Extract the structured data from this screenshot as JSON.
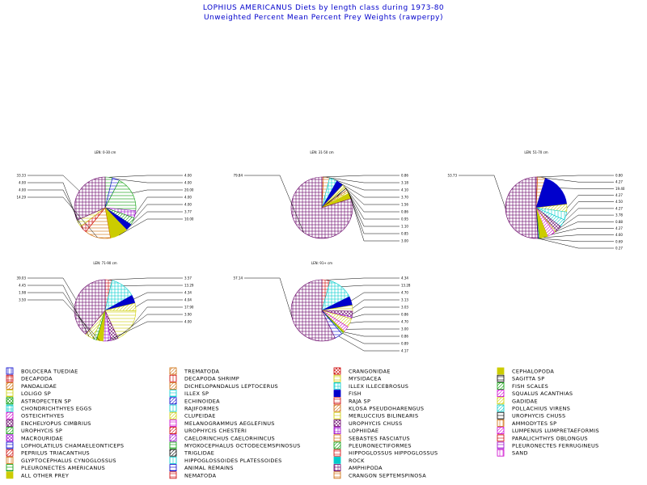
{
  "header": {
    "title": "LOPHIUS AMERICANUS Diets by length class during 1973-80",
    "subtitle": "Unweighted Percent Mean Percent Prey Weights (rawperpy)"
  },
  "chart_data": [
    {
      "type": "pie",
      "title": "LEN: 0-30 cm",
      "slices": [
        {
          "prey": "PLEURONECTES AMERICANUS",
          "value": 4.0,
          "label": "4.00"
        },
        {
          "prey": "ANIMAL REMAINS",
          "value": 4.0,
          "label": "4.00"
        },
        {
          "prey": "MYOXOCEPHALUS OCTODECEMSPINOSUS",
          "value": 20.0,
          "label": "20.00"
        },
        {
          "prey": "LOPHIIDAE",
          "value": 4.0,
          "label": "4.00"
        },
        {
          "prey": "FISH SCALES",
          "value": 4.0,
          "label": "4.00"
        },
        {
          "prey": "FISH",
          "value": 3.77,
          "label": "3.77"
        },
        {
          "prey": "CEPHALOPODA",
          "value": 10.0,
          "label": "10.00"
        },
        {
          "prey": "CRANGON SEPTEMSPINOSA",
          "value": 14.29,
          "label": "14.29"
        },
        {
          "prey": "DECAPODA",
          "value": 4.0,
          "label": "4.00"
        },
        {
          "prey": "MYSIDACEA",
          "value": 4.0,
          "label": "4.00"
        },
        {
          "prey": "AMPHIPODA",
          "value": 33.33,
          "label": "33.33"
        }
      ]
    },
    {
      "type": "pie",
      "title": "LEN: 31-50 cm",
      "slices": [
        {
          "prey": "DECAPODA",
          "value": 0.86,
          "label": "0.86"
        },
        {
          "prey": "CRANGON SEPTEMSPINOSA",
          "value": 3.18,
          "label": "3.18"
        },
        {
          "prey": "ILLEX ILLECEBROSUS",
          "value": 4.1,
          "label": "4.10"
        },
        {
          "prey": "FISH",
          "value": 3.7,
          "label": "3.70"
        },
        {
          "prey": "GADIDAE",
          "value": 1.56,
          "label": "1.56"
        },
        {
          "prey": "CLUPEIDAE",
          "value": 0.86,
          "label": "0.86"
        },
        {
          "prey": "TRIGLIDAE",
          "value": 0.95,
          "label": "0.95"
        },
        {
          "prey": "AMMODYTES SP",
          "value": 1.1,
          "label": "1.10"
        },
        {
          "prey": "MERLUCCIUS BILINEARIS",
          "value": 0.85,
          "label": "0.85"
        },
        {
          "prey": "ALL OTHER PREY",
          "value": 3.0,
          "label": "3.00"
        },
        {
          "prey": "AMPHIPODA",
          "value": 79.84,
          "label": "79.84"
        }
      ]
    },
    {
      "type": "pie",
      "title": "LEN: 51-70 cm",
      "slices": [
        {
          "prey": "DECAPODA",
          "value": 0.8,
          "label": "0.80"
        },
        {
          "prey": "CRANGON SEPTEMSPINOSA",
          "value": 4.27,
          "label": "4.27"
        },
        {
          "prey": "FISH",
          "value": 19.4,
          "label": "19.40"
        },
        {
          "prey": "GADIDAE",
          "value": 4.27,
          "label": "4.27"
        },
        {
          "prey": "RAJIFORMES",
          "value": 4.5,
          "label": "4.50"
        },
        {
          "prey": "POLLACHIUS VIRENS",
          "value": 4.27,
          "label": "4.27"
        },
        {
          "prey": "UROPHYCIS CHUSS",
          "value": 3.78,
          "label": "3.78"
        },
        {
          "prey": "MERLUCCIUS BILINEARIS",
          "value": 0.88,
          "label": "0.88"
        },
        {
          "prey": "SQUALUS ACANTHIAS",
          "value": 4.27,
          "label": "4.27"
        },
        {
          "prey": "ALL OTHER PREY",
          "value": 4.6,
          "label": "4.60"
        },
        {
          "prey": "PLEURONECTES AMERICANUS",
          "value": 0.69,
          "label": "0.69"
        },
        {
          "prey": "ANIMAL REMAINS",
          "value": 0.27,
          "label": "0.27"
        },
        {
          "prey": "AMPHIPODA",
          "value": 53.73,
          "label": "53.73"
        }
      ]
    },
    {
      "type": "pie",
      "title": "LEN: 71-90 cm",
      "slices": [
        {
          "prey": "DECAPODA",
          "value": 3.57,
          "label": "3.57"
        },
        {
          "prey": "ILLEX ILLECEBROSUS",
          "value": 13.29,
          "label": "13.29"
        },
        {
          "prey": "FISH",
          "value": 4.34,
          "label": "4.34"
        },
        {
          "prey": "CLUPEIDAE",
          "value": 4.04,
          "label": "4.04"
        },
        {
          "prey": "MERLUCCIUS BILINEARIS",
          "value": 17.9,
          "label": "17.90"
        },
        {
          "prey": "UROPHYCIS CHUSS",
          "value": 3.9,
          "label": "3.90"
        },
        {
          "prey": "LOPHIIDAE",
          "value": 4.0,
          "label": "4.00"
        },
        {
          "prey": "ALL OTHER PREY",
          "value": 3.5,
          "label": "3.50"
        },
        {
          "prey": "PLEURONECTES AMERICANUS",
          "value": 1.98,
          "label": "1.98"
        },
        {
          "prey": "GADIDAE",
          "value": 4.45,
          "label": "4.45"
        },
        {
          "prey": "AMPHIPODA",
          "value": 39.03,
          "label": "39.03"
        }
      ]
    },
    {
      "type": "pie",
      "title": "LEN: 91+ cm",
      "slices": [
        {
          "prey": "DECAPODA",
          "value": 4.34,
          "label": "4.34"
        },
        {
          "prey": "ILLEX ILLECEBROSUS",
          "value": 13.28,
          "label": "13.28"
        },
        {
          "prey": "FISH",
          "value": 4.7,
          "label": "4.70"
        },
        {
          "prey": "MERLUCCIUS BILINEARIS",
          "value": 3.13,
          "label": "3.13"
        },
        {
          "prey": "UROPHYCIS CHUSS",
          "value": 3.03,
          "label": "3.03"
        },
        {
          "prey": "LOPHIIDAE",
          "value": 0.86,
          "label": "0.86"
        },
        {
          "prey": "GADIDAE",
          "value": 4.7,
          "label": "4.70"
        },
        {
          "prey": "SQUALUS ACANTHIAS",
          "value": 3.0,
          "label": "3.00"
        },
        {
          "prey": "ALL OTHER PREY",
          "value": 0.86,
          "label": "0.86"
        },
        {
          "prey": "PLEURONECTES AMERICANUS",
          "value": 0.89,
          "label": "0.89"
        },
        {
          "prey": "ANIMAL REMAINS",
          "value": 4.17,
          "label": "4.17"
        },
        {
          "prey": "AMPHIPODA",
          "value": 57.14,
          "label": "57.14"
        }
      ]
    }
  ],
  "legend": [
    {
      "label": "BOLOCERA TUEDIAE",
      "color": "#0000cc",
      "pattern": "vline"
    },
    {
      "label": "DECAPODA",
      "color": "#cc0000",
      "pattern": "cross"
    },
    {
      "label": "PANDALIDAE",
      "color": "#cc6600",
      "pattern": "diag"
    },
    {
      "label": "LOLIGO SP",
      "color": "#cccc00",
      "pattern": "hline"
    },
    {
      "label": "ASTROPECTEN SP",
      "color": "#009900",
      "pattern": "xcross"
    },
    {
      "label": "CHONDRICHTHYES EGGS",
      "color": "#00cccc",
      "pattern": "cross"
    },
    {
      "label": "OSTEICHTHYES",
      "color": "#cc00cc",
      "pattern": "diag"
    },
    {
      "label": "ENCHELYOPUS CIMBRIUS",
      "color": "#660066",
      "pattern": "xcross"
    },
    {
      "label": "UROPHYCIS SP",
      "color": "#009900",
      "pattern": "diag"
    },
    {
      "label": "MACROURIDAE",
      "color": "#9900cc",
      "pattern": "xcross"
    },
    {
      "label": "LOPHOLATILUS CHAMAELEONTICEPS",
      "color": "#0000cc",
      "pattern": "hline"
    },
    {
      "label": "PEPRILUS TRIACANTHUS",
      "color": "#cc0000",
      "pattern": "diag"
    },
    {
      "label": "GLYPTOCEPHALUS CYNOGLOSSUS",
      "color": "#cc6600",
      "pattern": "vline"
    },
    {
      "label": "PLEURONECTES AMERICANUS",
      "color": "#009900",
      "pattern": "hline"
    },
    {
      "label": "ALL OTHER PREY",
      "color": "#cccc00",
      "pattern": "solid"
    },
    {
      "label": "TREMATODA",
      "color": "#cc6600",
      "pattern": "diag"
    },
    {
      "label": "DECAPODA SHRIMP",
      "color": "#cc0000",
      "pattern": "vline"
    },
    {
      "label": "DICHELOPANDALUS LEPTOCERUS",
      "color": "#cc6600",
      "pattern": "diag"
    },
    {
      "label": "ILLEX SP",
      "color": "#00cccc",
      "pattern": "hline"
    },
    {
      "label": "ECHINOIDEA",
      "color": "#0000cc",
      "pattern": "diag"
    },
    {
      "label": "RAJIFORMES",
      "color": "#00cccc",
      "pattern": "vline"
    },
    {
      "label": "CLUPEIDAE",
      "color": "#cccc00",
      "pattern": "diag"
    },
    {
      "label": "MELANOGRAMMUS AEGLEFINUS",
      "color": "#cc00cc",
      "pattern": "hline"
    },
    {
      "label": "UROPHYCIS CHESTERI",
      "color": "#cc0000",
      "pattern": "diag"
    },
    {
      "label": "CAELORINCHUS CAELORHINCUS",
      "color": "#9900cc",
      "pattern": "diag"
    },
    {
      "label": "MYOXOCEPHALUS OCTODECEMSPINOSUS",
      "color": "#009900",
      "pattern": "hline"
    },
    {
      "label": "TRIGLIDAE",
      "color": "#000000",
      "pattern": "diag"
    },
    {
      "label": "HIPPOGLOSSOIDES PLATESSOIDES",
      "color": "#00cccc",
      "pattern": "vline"
    },
    {
      "label": "ANIMAL REMAINS",
      "color": "#0000cc",
      "pattern": "hline"
    },
    {
      "label": "NEMATODA",
      "color": "#cc0000",
      "pattern": "hline"
    },
    {
      "label": "CRANGONIDAE",
      "color": "#cc0000",
      "pattern": "xcross"
    },
    {
      "label": "MYSIDACEA",
      "color": "#cccc00",
      "pattern": "hline"
    },
    {
      "label": "ILLEX ILLECEBROSUS",
      "color": "#00cccc",
      "pattern": "cross"
    },
    {
      "label": "FISH",
      "color": "#0000cc",
      "pattern": "solid"
    },
    {
      "label": "RAJA SP",
      "color": "#cc0000",
      "pattern": "hline"
    },
    {
      "label": "KLOSA PSEUDOHARENGUS",
      "color": "#cc6600",
      "pattern": "diag"
    },
    {
      "label": "MERLUCCIUS BILINEARIS",
      "color": "#cccc00",
      "pattern": "hline"
    },
    {
      "label": "UROPHYCIS CHUSS",
      "color": "#660066",
      "pattern": "xcross"
    },
    {
      "label": "LOPHIIDAE",
      "color": "#9900cc",
      "pattern": "cross"
    },
    {
      "label": "SEBASTES FASCIATUS",
      "color": "#cc6600",
      "pattern": "hline"
    },
    {
      "label": "PLEURONECTIFORMES",
      "color": "#009900",
      "pattern": "diag"
    },
    {
      "label": "HIPPOGLOSSUS HIPPOGLOSSUS",
      "color": "#cc0000",
      "pattern": "hline"
    },
    {
      "label": "ROCK",
      "color": "#00cccc",
      "pattern": "solid"
    },
    {
      "label": "AMPHIPODA",
      "color": "#660066",
      "pattern": "cross"
    },
    {
      "label": "CRANGON SEPTEMSPINOSA",
      "color": "#cc6600",
      "pattern": "hline"
    },
    {
      "label": "CEPHALOPODA",
      "color": "#cccc00",
      "pattern": "solid"
    },
    {
      "label": "SAGITTA SP",
      "color": "#000000",
      "pattern": "hline"
    },
    {
      "label": "FISH SCALES",
      "color": "#009900",
      "pattern": "diag"
    },
    {
      "label": "SQUALUS ACANTHIAS",
      "color": "#cc00cc",
      "pattern": "diag"
    },
    {
      "label": "GADIDAE",
      "color": "#cccc00",
      "pattern": "diag"
    },
    {
      "label": "POLLACHIUS VIRENS",
      "color": "#00cccc",
      "pattern": "diag"
    },
    {
      "label": "UROPHYCIS CHUSS",
      "color": "#000000",
      "pattern": "hline"
    },
    {
      "label": "AMMODYTES SP",
      "color": "#cc6600",
      "pattern": "vline"
    },
    {
      "label": "LUMPENUS LUMPRETAEFORMIS",
      "color": "#cc00cc",
      "pattern": "diag"
    },
    {
      "label": "PARALICHTHYS OBLONGUS",
      "color": "#cc0000",
      "pattern": "hline"
    },
    {
      "label": "PLEURONECTES FERRUGINEUS",
      "color": "#9900cc",
      "pattern": "hline"
    },
    {
      "label": "SAND",
      "color": "#cc00cc",
      "pattern": "vline"
    }
  ]
}
